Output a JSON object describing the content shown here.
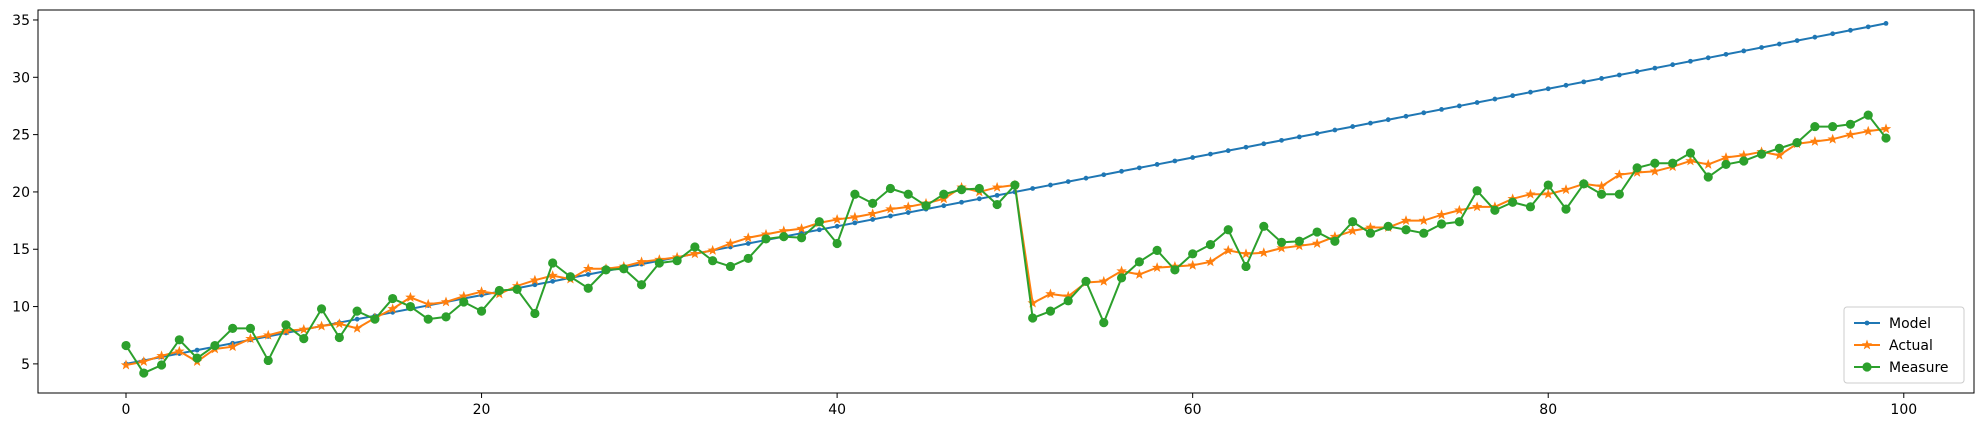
{
  "chart_data": {
    "type": "line",
    "title": "",
    "xlabel": "",
    "ylabel": "",
    "xlim": [
      -4.95,
      103.95
    ],
    "ylim": [
      2.46,
      35.87
    ],
    "xticks": [
      0,
      20,
      40,
      60,
      80,
      100
    ],
    "yticks": [
      5,
      10,
      15,
      20,
      25,
      30,
      35
    ],
    "grid": false,
    "legend": {
      "position": "lower-right"
    },
    "series": [
      {
        "name": "Model",
        "color": "#1f77b4",
        "marker": "dot",
        "x": [
          0,
          1,
          2,
          3,
          4,
          5,
          6,
          7,
          8,
          9,
          10,
          11,
          12,
          13,
          14,
          15,
          16,
          17,
          18,
          19,
          20,
          21,
          22,
          23,
          24,
          25,
          26,
          27,
          28,
          29,
          30,
          31,
          32,
          33,
          34,
          35,
          36,
          37,
          38,
          39,
          40,
          41,
          42,
          43,
          44,
          45,
          46,
          47,
          48,
          49,
          50,
          51,
          52,
          53,
          54,
          55,
          56,
          57,
          58,
          59,
          60,
          61,
          62,
          63,
          64,
          65,
          66,
          67,
          68,
          69,
          70,
          71,
          72,
          73,
          74,
          75,
          76,
          77,
          78,
          79,
          80,
          81,
          82,
          83,
          84,
          85,
          86,
          87,
          88,
          89,
          90,
          91,
          92,
          93,
          94,
          95,
          96,
          97,
          98,
          99
        ],
        "y": [
          5.0,
          5.3,
          5.6,
          5.9,
          6.2,
          6.5,
          6.8,
          7.1,
          7.4,
          7.7,
          8.0,
          8.3,
          8.6,
          8.9,
          9.2,
          9.5,
          9.8,
          10.1,
          10.4,
          10.7,
          11.0,
          11.3,
          11.6,
          11.9,
          12.2,
          12.5,
          12.8,
          13.1,
          13.4,
          13.7,
          14.0,
          14.3,
          14.6,
          14.9,
          15.2,
          15.5,
          15.8,
          16.1,
          16.4,
          16.7,
          17.0,
          17.3,
          17.6,
          17.9,
          18.2,
          18.5,
          18.8,
          19.1,
          19.4,
          19.7,
          20.0,
          20.3,
          20.6,
          20.9,
          21.2,
          21.5,
          21.8,
          22.1,
          22.4,
          22.7,
          23.0,
          23.3,
          23.6,
          23.9,
          24.2,
          24.5,
          24.8,
          25.1,
          25.4,
          25.7,
          26.0,
          26.3,
          26.6,
          26.9,
          27.2,
          27.5,
          27.8,
          28.1,
          28.4,
          28.7,
          29.0,
          29.3,
          29.6,
          29.9,
          30.2,
          30.5,
          30.8,
          31.1,
          31.4,
          31.7,
          32.0,
          32.3,
          32.6,
          32.9,
          33.2,
          33.5,
          33.8,
          34.1,
          34.4,
          34.7
        ]
      },
      {
        "name": "Actual",
        "color": "#ff7f0e",
        "marker": "star",
        "x": [
          0,
          1,
          2,
          3,
          4,
          5,
          6,
          7,
          8,
          9,
          10,
          11,
          12,
          13,
          14,
          15,
          16,
          17,
          18,
          19,
          20,
          21,
          22,
          23,
          24,
          25,
          26,
          27,
          28,
          29,
          30,
          31,
          32,
          33,
          34,
          35,
          36,
          37,
          38,
          39,
          40,
          41,
          42,
          43,
          44,
          45,
          46,
          47,
          48,
          49,
          50,
          51,
          52,
          53,
          54,
          55,
          56,
          57,
          58,
          59,
          60,
          61,
          62,
          63,
          64,
          65,
          66,
          67,
          68,
          69,
          70,
          71,
          72,
          73,
          74,
          75,
          76,
          77,
          78,
          79,
          80,
          81,
          82,
          83,
          84,
          85,
          86,
          87,
          88,
          89,
          90,
          91,
          92,
          93,
          94,
          95,
          96,
          97,
          98,
          99
        ],
        "y": [
          4.9,
          5.2,
          5.7,
          6.1,
          5.2,
          6.3,
          6.5,
          7.2,
          7.5,
          7.9,
          8.0,
          8.3,
          8.5,
          8.1,
          9.0,
          9.8,
          10.8,
          10.2,
          10.4,
          10.9,
          11.3,
          11.1,
          11.8,
          12.3,
          12.7,
          12.4,
          13.3,
          13.3,
          13.5,
          13.9,
          14.1,
          14.3,
          14.6,
          14.9,
          15.5,
          16.0,
          16.3,
          16.6,
          16.8,
          17.3,
          17.6,
          17.8,
          18.1,
          18.5,
          18.7,
          19.0,
          19.4,
          20.4,
          20.0,
          20.4,
          20.6,
          10.3,
          11.1,
          10.9,
          12.1,
          12.2,
          13.1,
          12.8,
          13.4,
          13.5,
          13.6,
          13.9,
          14.9,
          14.6,
          14.7,
          15.1,
          15.3,
          15.5,
          16.1,
          16.6,
          16.9,
          16.9,
          17.5,
          17.5,
          18.0,
          18.4,
          18.7,
          18.7,
          19.4,
          19.8,
          19.8,
          20.2,
          20.7,
          20.5,
          21.5,
          21.7,
          21.8,
          22.2,
          22.7,
          22.4,
          23.0,
          23.2,
          23.5,
          23.2,
          24.2,
          24.4,
          24.6,
          25.0,
          25.3,
          25.5
        ]
      },
      {
        "name": "Measure",
        "color": "#2ca02c",
        "marker": "circle",
        "x": [
          0,
          1,
          2,
          3,
          4,
          5,
          6,
          7,
          8,
          9,
          10,
          11,
          12,
          13,
          14,
          15,
          16,
          17,
          18,
          19,
          20,
          21,
          22,
          23,
          24,
          25,
          26,
          27,
          28,
          29,
          30,
          31,
          32,
          33,
          34,
          35,
          36,
          37,
          38,
          39,
          40,
          41,
          42,
          43,
          44,
          45,
          46,
          47,
          48,
          49,
          50,
          51,
          52,
          53,
          54,
          55,
          56,
          57,
          58,
          59,
          60,
          61,
          62,
          63,
          64,
          65,
          66,
          67,
          68,
          69,
          70,
          71,
          72,
          73,
          74,
          75,
          76,
          77,
          78,
          79,
          80,
          81,
          82,
          83,
          84,
          85,
          86,
          87,
          88,
          89,
          90,
          91,
          92,
          93,
          94,
          95,
          96,
          97,
          98,
          99
        ],
        "y": [
          6.6,
          4.2,
          4.9,
          7.1,
          5.5,
          6.6,
          8.1,
          8.1,
          5.3,
          8.4,
          7.2,
          9.8,
          7.3,
          9.6,
          8.9,
          10.7,
          10.0,
          8.9,
          9.1,
          10.4,
          9.6,
          11.4,
          11.5,
          9.4,
          13.8,
          12.6,
          11.6,
          13.2,
          13.3,
          11.9,
          13.8,
          14.0,
          15.2,
          14.0,
          13.5,
          14.2,
          15.9,
          16.1,
          16.0,
          17.4,
          15.5,
          19.8,
          19.0,
          20.3,
          19.8,
          18.8,
          19.8,
          20.2,
          20.3,
          18.9,
          20.6,
          9.0,
          9.6,
          10.5,
          12.2,
          8.6,
          12.5,
          13.9,
          14.9,
          13.2,
          14.6,
          15.4,
          16.7,
          13.5,
          17.0,
          15.6,
          15.7,
          16.5,
          15.7,
          17.4,
          16.4,
          17.0,
          16.7,
          16.4,
          17.2,
          17.4,
          20.1,
          18.4,
          19.1,
          18.7,
          20.6,
          18.5,
          20.7,
          19.8,
          19.8,
          22.1,
          22.5,
          22.5,
          23.4,
          21.3,
          22.4,
          22.7,
          23.3,
          23.8,
          24.3,
          25.7,
          25.7,
          25.9,
          26.7,
          24.7
        ]
      }
    ]
  }
}
